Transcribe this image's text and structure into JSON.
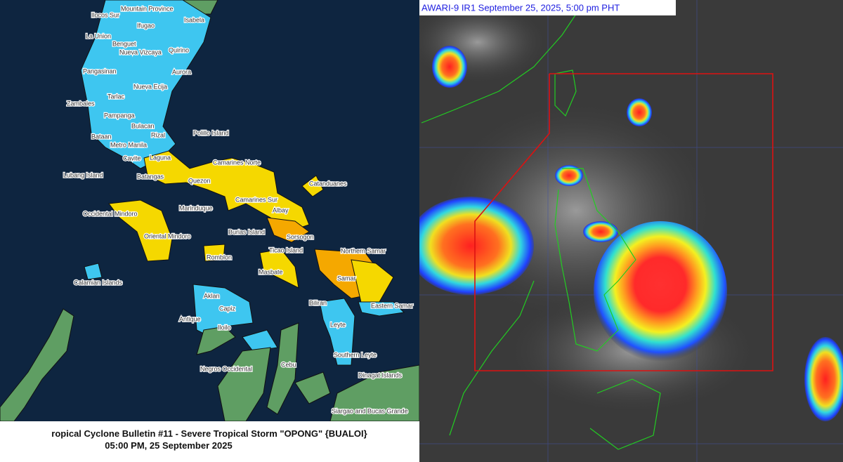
{
  "left_panel": {
    "labels": [
      "Ilocos Sur",
      "Mountain Province",
      "Ifugao",
      "Isabela",
      "La Union",
      "Benguet",
      "Nueva Vizcaya",
      "Quirino",
      "Pangasinan",
      "Aurora",
      "Tarlac",
      "Nueva Ecija",
      "Zambales",
      "Pampanga",
      "Bulacan",
      "Bataan",
      "Metro Manila",
      "Rizal",
      "Polillo Island",
      "Cavite",
      "Laguna",
      "Camarines Norte",
      "Lubang Island",
      "Batangas",
      "Quezon",
      "Catanduanes",
      "Marinduque",
      "Camarines Sur",
      "Occidental Mindoro",
      "Albay",
      "Burias Island",
      "Sorsogon",
      "Oriental Mindoro",
      "Ticao Island",
      "Northern Samar",
      "Romblon",
      "Masbate",
      "Samar",
      "Calamian Islands",
      "Aklan",
      "Biliran",
      "Eastern Samar",
      "Capiz",
      "Leyte",
      "Antique",
      "Iloilo",
      "Southern Leyte",
      "Negros Occidental",
      "Cebu",
      "Dinagat Islands",
      "Siargao and Bucas Grande"
    ],
    "caption": [
      "ropical Cyclone Bulletin #11 - Severe Tropical Storm \"OPONG\" {BUALOI}",
      "05:00 PM, 25 September 2025"
    ]
  },
  "right_panel": {
    "title": "AWARI-9 IR1 September 25, 2025, 5:00 pm PHT"
  }
}
